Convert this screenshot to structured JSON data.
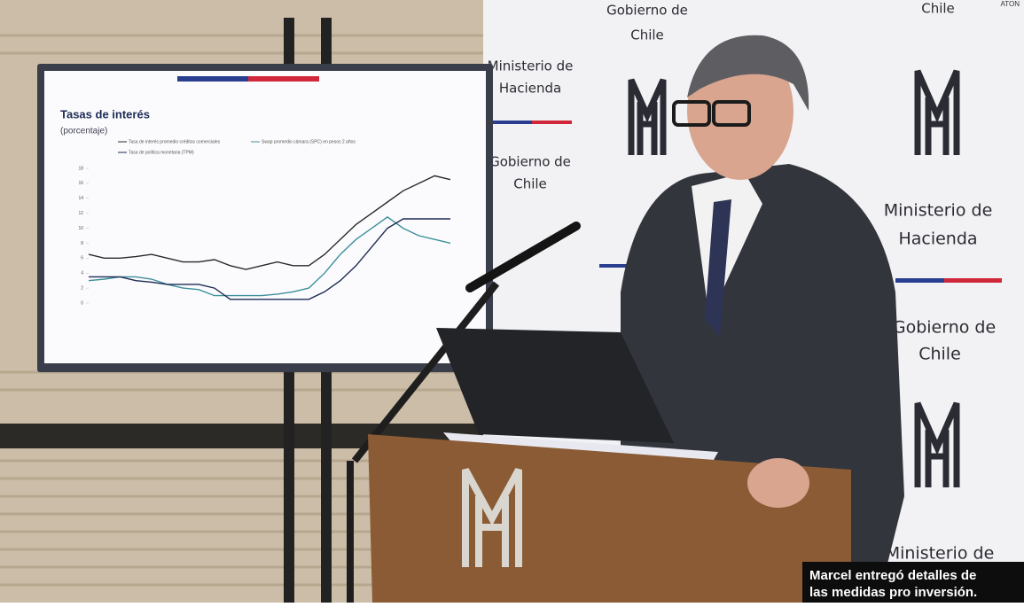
{
  "credit": "ATON",
  "caption": {
    "line1": "Marcel entregó detalles de",
    "line2": "las medidas pro inversión."
  },
  "backdrop": {
    "ministerio": "Ministerio de",
    "hacienda": "Hacienda",
    "gobierno": "Gobierno de",
    "chile": "Chile"
  },
  "screen": {
    "chart_data": {
      "type": "line",
      "title": "Tasas de interés",
      "subtitle": "(porcentaje)",
      "ylim": [
        0,
        18
      ],
      "yticks": [
        0,
        2,
        4,
        6,
        8,
        10,
        12,
        14,
        16,
        18
      ],
      "series": [
        {
          "name": "Tasa de interés promedio créditos comerciales",
          "color": "#2a2a2a",
          "values": [
            6.5,
            6,
            6,
            6.2,
            6.5,
            6,
            5.5,
            5.5,
            5.8,
            5,
            4.5,
            5,
            5.5,
            5,
            5,
            6.5,
            8.5,
            10.5,
            12,
            13.5,
            15,
            16,
            17,
            16.5
          ]
        },
        {
          "name": "Swap promedio cámara (SPC) en pesos 2 años",
          "color": "#3c8f9c",
          "values": [
            3,
            3.2,
            3.5,
            3.5,
            3.2,
            2.5,
            2,
            1.8,
            1,
            1,
            1,
            1,
            1.2,
            1.5,
            2,
            4,
            6.5,
            8.5,
            10,
            11.5,
            10,
            9,
            8.5,
            8
          ]
        },
        {
          "name": "Tasa de política monetaria (TPM)",
          "color": "#1d2b55",
          "values": [
            3.5,
            3.5,
            3.5,
            3,
            2.8,
            2.5,
            2.5,
            2.5,
            2,
            0.5,
            0.5,
            0.5,
            0.5,
            0.5,
            0.5,
            1.5,
            3,
            5,
            7.5,
            10,
            11.25,
            11.25,
            11.25,
            11.25
          ]
        }
      ]
    }
  }
}
